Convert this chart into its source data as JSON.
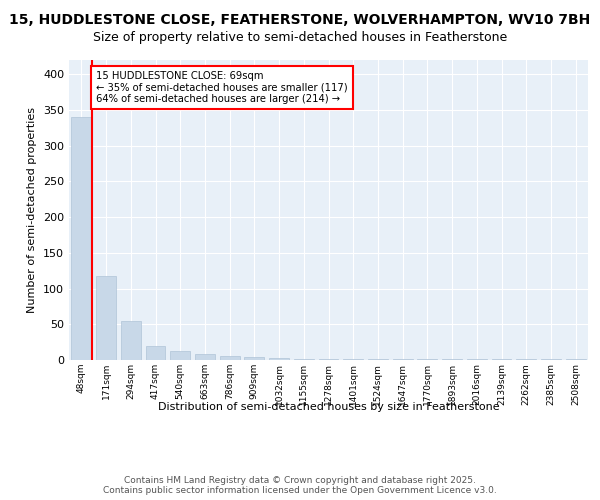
{
  "title": "15, HUDDLESTONE CLOSE, FEATHERSTONE, WOLVERHAMPTON, WV10 7BH",
  "subtitle": "Size of property relative to semi-detached houses in Featherstone",
  "xlabel": "Distribution of semi-detached houses by size in Featherstone",
  "ylabel": "Number of semi-detached properties",
  "categories": [
    "48sqm",
    "171sqm",
    "294sqm",
    "417sqm",
    "540sqm",
    "663sqm",
    "786sqm",
    "909sqm",
    "1032sqm",
    "1155sqm",
    "1278sqm",
    "1401sqm",
    "1524sqm",
    "1647sqm",
    "1770sqm",
    "1893sqm",
    "2016sqm",
    "2139sqm",
    "2262sqm",
    "2385sqm",
    "2508sqm"
  ],
  "values": [
    340,
    117,
    55,
    20,
    12,
    8,
    5,
    4,
    3,
    2,
    2,
    2,
    1,
    1,
    1,
    1,
    1,
    1,
    1,
    1,
    1
  ],
  "bar_color": "#c8d8e8",
  "bar_edge_color": "#b0c4d8",
  "annotation_text": "15 HUDDLESTONE CLOSE: 69sqm\n← 35% of semi-detached houses are smaller (117)\n64% of semi-detached houses are larger (214) →",
  "ylim": [
    0,
    420
  ],
  "yticks": [
    0,
    50,
    100,
    150,
    200,
    250,
    300,
    350,
    400
  ],
  "background_color": "#e8f0f8",
  "title_fontsize": 10,
  "subtitle_fontsize": 9,
  "footer_text": "Contains HM Land Registry data © Crown copyright and database right 2025.\nContains public sector information licensed under the Open Government Licence v3.0.",
  "red_line_x": 0.45
}
